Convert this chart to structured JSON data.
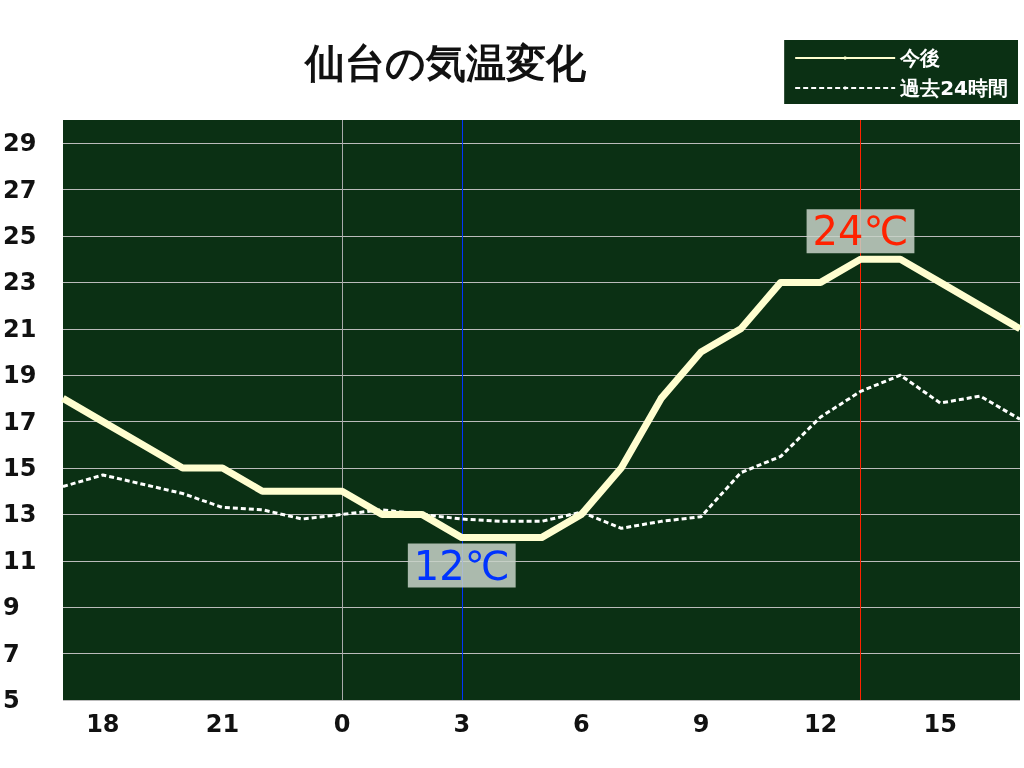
{
  "chart_data": {
    "type": "line",
    "title": "仙台の気温変化",
    "categories": [
      null,
      "18",
      null,
      null,
      "21",
      null,
      null,
      "0",
      null,
      null,
      "3",
      null,
      null,
      "6",
      null,
      null,
      "9",
      null,
      null,
      "12",
      null,
      null,
      "15",
      null,
      null
    ],
    "series": [
      {
        "name": "今後",
        "color": "#fffed0",
        "line_style": "solid",
        "values": [
          18,
          17,
          16,
          15,
          15,
          14,
          14,
          14,
          13,
          13,
          12,
          12,
          12,
          13,
          15,
          18,
          20,
          21,
          23,
          23,
          24,
          24,
          23,
          22,
          21
        ]
      },
      {
        "name": "過去24時間",
        "color": "#ffffff",
        "line_style": "dashed",
        "values": [
          14.2,
          14.7,
          14.3,
          13.9,
          13.3,
          13.2,
          12.8,
          13.0,
          13.2,
          13.0,
          12.8,
          12.7,
          12.7,
          13.1,
          12.4,
          12.7,
          12.9,
          14.8,
          15.5,
          17.2,
          18.3,
          19.0,
          17.8,
          18.1,
          17.1
        ]
      }
    ],
    "ylim": [
      5,
      30
    ],
    "yticks": [
      5,
      7,
      9,
      11,
      13,
      15,
      17,
      19,
      21,
      23,
      25,
      27,
      29
    ],
    "grid": "y",
    "legend": "top right",
    "marker": "none",
    "ref_lines": [
      {
        "axis": "x",
        "value": "0",
        "color": "#aaaaaa"
      },
      {
        "axis": "x",
        "value": "3",
        "color": "#0033ff"
      }
    ],
    "annotations": [
      {
        "text": "12℃",
        "x": "3",
        "y": 12
      },
      {
        "text": "24℃",
        "y": 24
      }
    ]
  }
}
